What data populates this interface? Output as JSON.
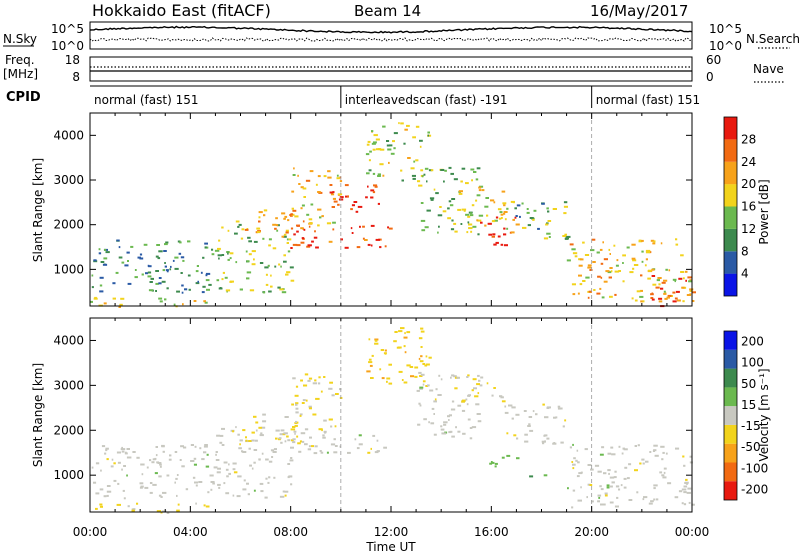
{
  "header": {
    "station": "Hokkaido East (fitACF)",
    "beam": "Beam 14",
    "date": "16/May/2017"
  },
  "noise_panel": {
    "left_label": "N.Sky",
    "left_ticks": [
      "10^5",
      "10^0"
    ],
    "right_ticks": [
      "10^5",
      "10^0"
    ],
    "right_label": "N.Search"
  },
  "freq_panel": {
    "left_label_line1": "Freq.",
    "left_label_line2": "[MHz]",
    "left_ticks": [
      "18",
      "8"
    ],
    "right_ticks": [
      "60",
      "0"
    ],
    "right_label": "Nave"
  },
  "cpid_panel": {
    "label": "CPID",
    "modes": [
      {
        "name": "normal (fast) 151",
        "start_h": 0,
        "end_h": 10
      },
      {
        "name": "interleavedscan (fast) -191",
        "start_h": 10,
        "end_h": 20
      },
      {
        "name": "normal (fast) 151",
        "start_h": 20,
        "end_h": 24
      }
    ]
  },
  "colors": {
    "power": [
      "#0a14e6",
      "#2a5aa5",
      "#3d8a4e",
      "#6bb94f",
      "#f2d31c",
      "#f7a21a",
      "#f26a12",
      "#e8190f"
    ],
    "velocity": [
      "#e8190f",
      "#f26a12",
      "#f7a21a",
      "#f2d31c",
      "#c8c8c0",
      "#6bb94f",
      "#3d8a4e",
      "#2a5aa5",
      "#0a14e6"
    ]
  },
  "chart_data": [
    {
      "type": "heatmap",
      "title": "Power",
      "xlabel": "Time UT",
      "ylabel": "Slant Range [km]",
      "x_ticks": [
        "00:00",
        "04:00",
        "08:00",
        "12:00",
        "16:00",
        "20:00",
        "00:00"
      ],
      "xlim_hours": [
        0,
        24
      ],
      "y_ticks": [
        1000,
        2000,
        3000,
        4000
      ],
      "ylim": [
        180,
        4500
      ],
      "colorbar": {
        "label": "Power [dB]",
        "ticks": [
          4,
          8,
          12,
          16,
          20,
          24,
          28
        ],
        "range": [
          0,
          32
        ]
      },
      "echo_regions": [
        {
          "t0": 0.0,
          "t1": 5.0,
          "r0": 500,
          "r1": 1700,
          "value": 10
        },
        {
          "t0": 0.0,
          "t1": 5.0,
          "r0": 180,
          "r1": 400,
          "value": 18
        },
        {
          "t0": 5.0,
          "t1": 8.0,
          "r0": 500,
          "r1": 2100,
          "value": 14
        },
        {
          "t0": 6.0,
          "t1": 8.5,
          "r0": 1700,
          "r1": 2400,
          "value": 22
        },
        {
          "t0": 7.5,
          "t1": 12.0,
          "r0": 1500,
          "r1": 2000,
          "value": 29
        },
        {
          "t0": 8.0,
          "t1": 10.0,
          "r0": 2000,
          "r1": 3300,
          "value": 20
        },
        {
          "t0": 9.5,
          "t1": 11.5,
          "r0": 2300,
          "r1": 3000,
          "value": 30
        },
        {
          "t0": 11.0,
          "t1": 13.5,
          "r0": 3000,
          "r1": 4300,
          "value": 16
        },
        {
          "t0": 13.0,
          "t1": 15.5,
          "r0": 1800,
          "r1": 3300,
          "value": 14
        },
        {
          "t0": 14.5,
          "t1": 16.5,
          "r0": 2000,
          "r1": 2900,
          "value": 18
        },
        {
          "t0": 15.5,
          "t1": 17.0,
          "r0": 1500,
          "r1": 2200,
          "value": 29
        },
        {
          "t0": 16.5,
          "t1": 19.0,
          "r0": 1700,
          "r1": 2600,
          "value": 13
        },
        {
          "t0": 19.0,
          "t1": 24.0,
          "r0": 300,
          "r1": 1700,
          "value": 20
        },
        {
          "t0": 22.0,
          "t1": 24.0,
          "r0": 180,
          "r1": 900,
          "value": 27
        }
      ]
    },
    {
      "type": "heatmap",
      "title": "Velocity",
      "xlabel": "Time UT",
      "ylabel": "Slant Range [km]",
      "x_ticks": [
        "00:00",
        "04:00",
        "08:00",
        "12:00",
        "16:00",
        "20:00",
        "00:00"
      ],
      "xlim_hours": [
        0,
        24
      ],
      "y_ticks": [
        1000,
        2000,
        3000,
        4000
      ],
      "ylim": [
        180,
        4500
      ],
      "colorbar": {
        "label": "Velocity [m s⁻¹]",
        "ticks": [
          200,
          100,
          50,
          15,
          -15,
          -50,
          -100,
          -200
        ],
        "range": [
          -250,
          250
        ]
      },
      "echo_regions": [
        {
          "t0": 0.0,
          "t1": 5.0,
          "r0": 500,
          "r1": 1700,
          "value": 0
        },
        {
          "t0": 0.0,
          "t1": 5.0,
          "r0": 180,
          "r1": 400,
          "value": -30
        },
        {
          "t0": 5.0,
          "t1": 8.0,
          "r0": 500,
          "r1": 2100,
          "value": 0
        },
        {
          "t0": 6.0,
          "t1": 8.5,
          "r0": 1700,
          "r1": 2400,
          "value": -40
        },
        {
          "t0": 7.5,
          "t1": 12.0,
          "r0": 1500,
          "r1": 2000,
          "value": 0
        },
        {
          "t0": 8.0,
          "t1": 10.0,
          "r0": 2000,
          "r1": 3300,
          "value": -30
        },
        {
          "t0": 11.0,
          "t1": 13.5,
          "r0": 3000,
          "r1": 4300,
          "value": -60
        },
        {
          "t0": 13.0,
          "t1": 15.5,
          "r0": 1800,
          "r1": 3300,
          "value": 0
        },
        {
          "t0": 14.5,
          "t1": 16.5,
          "r0": 2600,
          "r1": 3200,
          "value": -40
        },
        {
          "t0": 15.5,
          "t1": 17.0,
          "r0": 1200,
          "r1": 1500,
          "value": 60
        },
        {
          "t0": 16.5,
          "t1": 19.0,
          "r0": 1700,
          "r1": 2600,
          "value": 0
        },
        {
          "t0": 17.5,
          "t1": 18.2,
          "r0": 900,
          "r1": 1050,
          "value": 70
        },
        {
          "t0": 19.0,
          "t1": 24.0,
          "r0": 300,
          "r1": 1700,
          "value": 0
        }
      ]
    }
  ]
}
